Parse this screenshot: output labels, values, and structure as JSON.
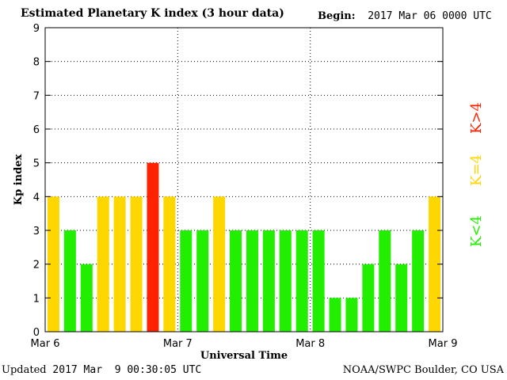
{
  "header": {
    "title": "Estimated Planetary K index (3 hour data)",
    "begin_label": "Begin:",
    "begin_value": "2017 Mar 06 0000 UTC"
  },
  "footer": {
    "updated_label": "Updated",
    "updated_value": "2017 Mar  9 00:30:05 UTC",
    "source": "NOAA/SWPC Boulder, CO USA"
  },
  "colors": {
    "below": "#22ee00",
    "equal": "#ffd700",
    "above": "#ff2200"
  },
  "legend": {
    "below": "K<4",
    "equal": "K=4",
    "above": "K>4"
  },
  "chart_data": {
    "type": "bar",
    "title": "Estimated Planetary K index (3 hour data)",
    "xlabel": "Universal Time",
    "ylabel": "Kp index",
    "ylim": [
      0,
      9
    ],
    "yticks": [
      "0",
      "1",
      "2",
      "3",
      "4",
      "5",
      "6",
      "7",
      "8",
      "9"
    ],
    "xticks": [
      "Mar 6",
      "Mar 7",
      "Mar 8",
      "Mar 9"
    ],
    "grid": true,
    "values": [
      4,
      3,
      2,
      4,
      4,
      4,
      5,
      4,
      3,
      3,
      4,
      3,
      3,
      3,
      3,
      3,
      3,
      1,
      1,
      2,
      3,
      2,
      3,
      4
    ]
  }
}
